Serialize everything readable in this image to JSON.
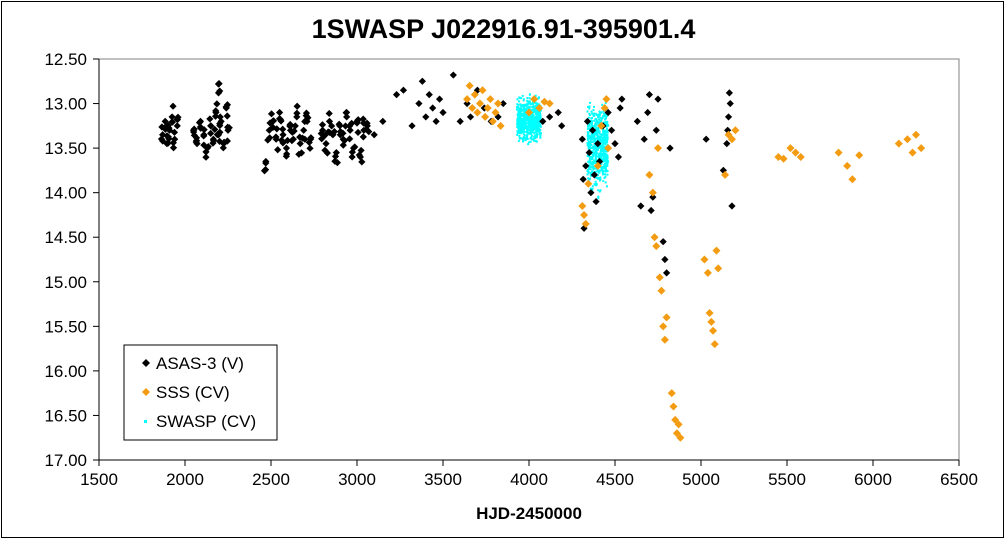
{
  "chart_data": {
    "type": "scatter",
    "title": "1SWASP J022916.91-395901.4",
    "xlabel": "HJD-2450000",
    "ylabel": "",
    "xlim": [
      1500,
      6500
    ],
    "ylim": [
      17.0,
      12.5
    ],
    "y_inverted": true,
    "grid": false,
    "legend_position": "bottom-left",
    "x_ticks": [
      "1500",
      "2000",
      "2500",
      "3000",
      "3500",
      "4000",
      "4500",
      "5000",
      "5500",
      "6000",
      "6500"
    ],
    "y_ticks": [
      "12.50",
      "13.00",
      "13.50",
      "14.00",
      "14.50",
      "15.00",
      "15.50",
      "16.00",
      "16.50",
      "17.00"
    ],
    "series": [
      {
        "name": "ASAS-3 (V)",
        "color": "#000000",
        "marker": "diamond",
        "points": [
          [
            1870,
            13.35
          ],
          [
            1885,
            13.2
          ],
          [
            1895,
            13.45
          ],
          [
            1910,
            13.3
          ],
          [
            1925,
            13.15
          ],
          [
            1940,
            13.4
          ],
          [
            1955,
            13.25
          ],
          [
            2050,
            13.3
          ],
          [
            2070,
            13.45
          ],
          [
            2090,
            13.2
          ],
          [
            2110,
            13.35
          ],
          [
            2130,
            13.5
          ],
          [
            2150,
            13.25
          ],
          [
            2165,
            13.4
          ],
          [
            2180,
            13.1
          ],
          [
            2195,
            13.35
          ],
          [
            2210,
            13.2
          ],
          [
            2225,
            13.45
          ],
          [
            2240,
            13.05
          ],
          [
            2195,
            12.88
          ],
          [
            2250,
            13.3
          ],
          [
            2470,
            13.65
          ],
          [
            2490,
            13.3
          ],
          [
            2510,
            13.2
          ],
          [
            2530,
            13.4
          ],
          [
            2550,
            13.1
          ],
          [
            2570,
            13.35
          ],
          [
            2590,
            13.5
          ],
          [
            2610,
            13.25
          ],
          [
            2630,
            13.4
          ],
          [
            2650,
            13.15
          ],
          [
            2670,
            13.45
          ],
          [
            2690,
            13.3
          ],
          [
            2710,
            13.2
          ],
          [
            2730,
            13.4
          ],
          [
            2800,
            13.3
          ],
          [
            2820,
            13.45
          ],
          [
            2840,
            13.2
          ],
          [
            2860,
            13.35
          ],
          [
            2880,
            13.55
          ],
          [
            2900,
            13.25
          ],
          [
            2920,
            13.4
          ],
          [
            2940,
            13.15
          ],
          [
            2960,
            13.3
          ],
          [
            2980,
            13.5
          ],
          [
            3000,
            13.2
          ],
          [
            3020,
            13.6
          ],
          [
            3040,
            13.3
          ],
          [
            3060,
            13.25
          ],
          [
            3100,
            13.35
          ],
          [
            3150,
            13.2
          ],
          [
            3230,
            12.9
          ],
          [
            3270,
            12.85
          ],
          [
            3320,
            13.25
          ],
          [
            3360,
            13.0
          ],
          [
            3380,
            12.75
          ],
          [
            3400,
            13.15
          ],
          [
            3420,
            12.9
          ],
          [
            3440,
            13.05
          ],
          [
            3460,
            13.2
          ],
          [
            3480,
            12.95
          ],
          [
            3500,
            13.1
          ],
          [
            3560,
            12.68
          ],
          [
            3600,
            13.2
          ],
          [
            3640,
            13.0
          ],
          [
            3660,
            13.15
          ],
          [
            3700,
            12.85
          ],
          [
            3740,
            13.05
          ],
          [
            3780,
            13.2
          ],
          [
            3820,
            13.15
          ],
          [
            3850,
            13.0
          ],
          [
            4080,
            13.2
          ],
          [
            4120,
            13.15
          ],
          [
            4170,
            13.1
          ],
          [
            4190,
            13.25
          ],
          [
            4310,
            13.4
          ],
          [
            4315,
            13.85
          ],
          [
            4320,
            14.4
          ],
          [
            4330,
            13.7
          ],
          [
            4340,
            13.2
          ],
          [
            4350,
            13.55
          ],
          [
            4360,
            14.0
          ],
          [
            4370,
            13.3
          ],
          [
            4380,
            13.8
          ],
          [
            4390,
            14.1
          ],
          [
            4400,
            13.45
          ],
          [
            4410,
            13.65
          ],
          [
            4430,
            13.25
          ],
          [
            4460,
            13.1
          ],
          [
            4480,
            13.3
          ],
          [
            4500,
            13.45
          ],
          [
            4520,
            13.6
          ],
          [
            4530,
            13.05
          ],
          [
            4540,
            12.95
          ],
          [
            4630,
            13.2
          ],
          [
            4650,
            14.15
          ],
          [
            4670,
            13.4
          ],
          [
            4690,
            13.1
          ],
          [
            4700,
            12.9
          ],
          [
            4710,
            14.2
          ],
          [
            4720,
            14.05
          ],
          [
            4740,
            13.3
          ],
          [
            4750,
            12.95
          ],
          [
            4780,
            14.55
          ],
          [
            4790,
            14.75
          ],
          [
            4800,
            14.9
          ],
          [
            4820,
            13.5
          ],
          [
            5030,
            13.4
          ],
          [
            5130,
            13.75
          ],
          [
            5150,
            13.45
          ],
          [
            5155,
            13.3
          ],
          [
            5160,
            13.15
          ],
          [
            5165,
            12.88
          ],
          [
            5170,
            13.0
          ],
          [
            5180,
            14.15
          ]
        ]
      },
      {
        "name": "SSS (CV)",
        "color": "#F39C12",
        "marker": "diamond",
        "points": [
          [
            3640,
            12.95
          ],
          [
            3655,
            12.8
          ],
          [
            3670,
            13.05
          ],
          [
            3685,
            12.9
          ],
          [
            3700,
            13.1
          ],
          [
            3715,
            13.0
          ],
          [
            3730,
            12.85
          ],
          [
            3745,
            13.15
          ],
          [
            3760,
            13.05
          ],
          [
            3775,
            12.95
          ],
          [
            3790,
            13.2
          ],
          [
            3805,
            13.1
          ],
          [
            3820,
            13.0
          ],
          [
            3835,
            13.25
          ],
          [
            4000,
            13.1
          ],
          [
            4030,
            12.95
          ],
          [
            4060,
            13.05
          ],
          [
            4090,
            12.98
          ],
          [
            4120,
            13.0
          ],
          [
            4310,
            14.15
          ],
          [
            4320,
            14.25
          ],
          [
            4330,
            14.35
          ],
          [
            4345,
            13.9
          ],
          [
            4400,
            13.7
          ],
          [
            4420,
            13.25
          ],
          [
            4440,
            13.05
          ],
          [
            4450,
            12.95
          ],
          [
            4460,
            13.5
          ],
          [
            4700,
            13.8
          ],
          [
            4720,
            14.0
          ],
          [
            4730,
            14.5
          ],
          [
            4740,
            14.6
          ],
          [
            4750,
            13.5
          ],
          [
            4760,
            14.95
          ],
          [
            4770,
            15.1
          ],
          [
            4780,
            15.5
          ],
          [
            4790,
            15.65
          ],
          [
            4800,
            15.4
          ],
          [
            4830,
            16.25
          ],
          [
            4840,
            16.4
          ],
          [
            4850,
            16.55
          ],
          [
            4860,
            16.7
          ],
          [
            4870,
            16.6
          ],
          [
            4880,
            16.75
          ],
          [
            5020,
            14.75
          ],
          [
            5040,
            14.9
          ],
          [
            5050,
            15.35
          ],
          [
            5060,
            15.45
          ],
          [
            5070,
            15.55
          ],
          [
            5080,
            15.7
          ],
          [
            5090,
            14.65
          ],
          [
            5100,
            14.85
          ],
          [
            5140,
            13.8
          ],
          [
            5160,
            13.35
          ],
          [
            5180,
            13.4
          ],
          [
            5200,
            13.3
          ],
          [
            5450,
            13.6
          ],
          [
            5480,
            13.62
          ],
          [
            5520,
            13.5
          ],
          [
            5550,
            13.55
          ],
          [
            5580,
            13.6
          ],
          [
            5800,
            13.55
          ],
          [
            5850,
            13.7
          ],
          [
            5880,
            13.85
          ],
          [
            5920,
            13.58
          ],
          [
            6150,
            13.45
          ],
          [
            6200,
            13.4
          ],
          [
            6230,
            13.55
          ],
          [
            6250,
            13.35
          ],
          [
            6280,
            13.5
          ]
        ]
      },
      {
        "name": "SWASP (CV)",
        "color": "#00FFFF",
        "marker": "point",
        "clusters": [
          {
            "x_range": [
              3930,
              4070
            ],
            "y_range": [
              12.85,
              13.5
            ]
          },
          {
            "x_range": [
              4340,
              4460
            ],
            "y_range": [
              12.8,
              14.15
            ]
          }
        ]
      }
    ]
  }
}
